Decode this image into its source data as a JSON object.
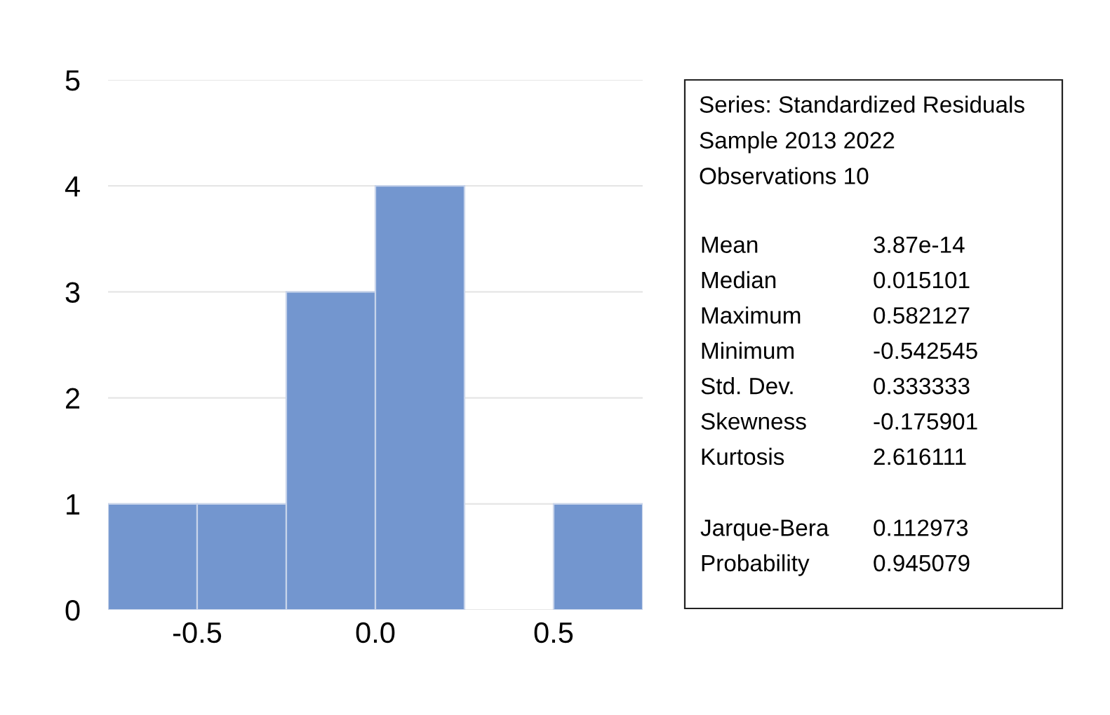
{
  "chart_data": {
    "type": "histogram",
    "bins": [
      -0.75,
      -0.5,
      -0.25,
      0.0,
      0.25,
      0.5,
      0.75
    ],
    "values": [
      1,
      1,
      3,
      4,
      0,
      1
    ],
    "color": "#7396cf",
    "xlim": [
      -0.75,
      0.75
    ],
    "xticks": [
      {
        "value": -0.5,
        "label": "-0.5"
      },
      {
        "value": 0.0,
        "label": "0.0"
      },
      {
        "value": 0.5,
        "label": "0.5"
      }
    ],
    "ylim": [
      0,
      5
    ],
    "yticks": [
      0,
      1,
      2,
      3,
      4,
      5
    ],
    "grid": "y",
    "annotations": [
      "Series: Standardized Residuals",
      "Sample 2013 2022",
      "Observations 10",
      "Mean",
      "3.87e-14",
      "Median",
      "0.015101",
      "Maximum",
      "0.582127",
      "Minimum",
      "-0.542545",
      "Std. Dev.",
      "0.333333",
      "Skewness",
      "-0.175901",
      "Kurtosis",
      "2.616111",
      "Jarque-Bera",
      "0.112973",
      "Probability",
      "0.945079"
    ]
  }
}
